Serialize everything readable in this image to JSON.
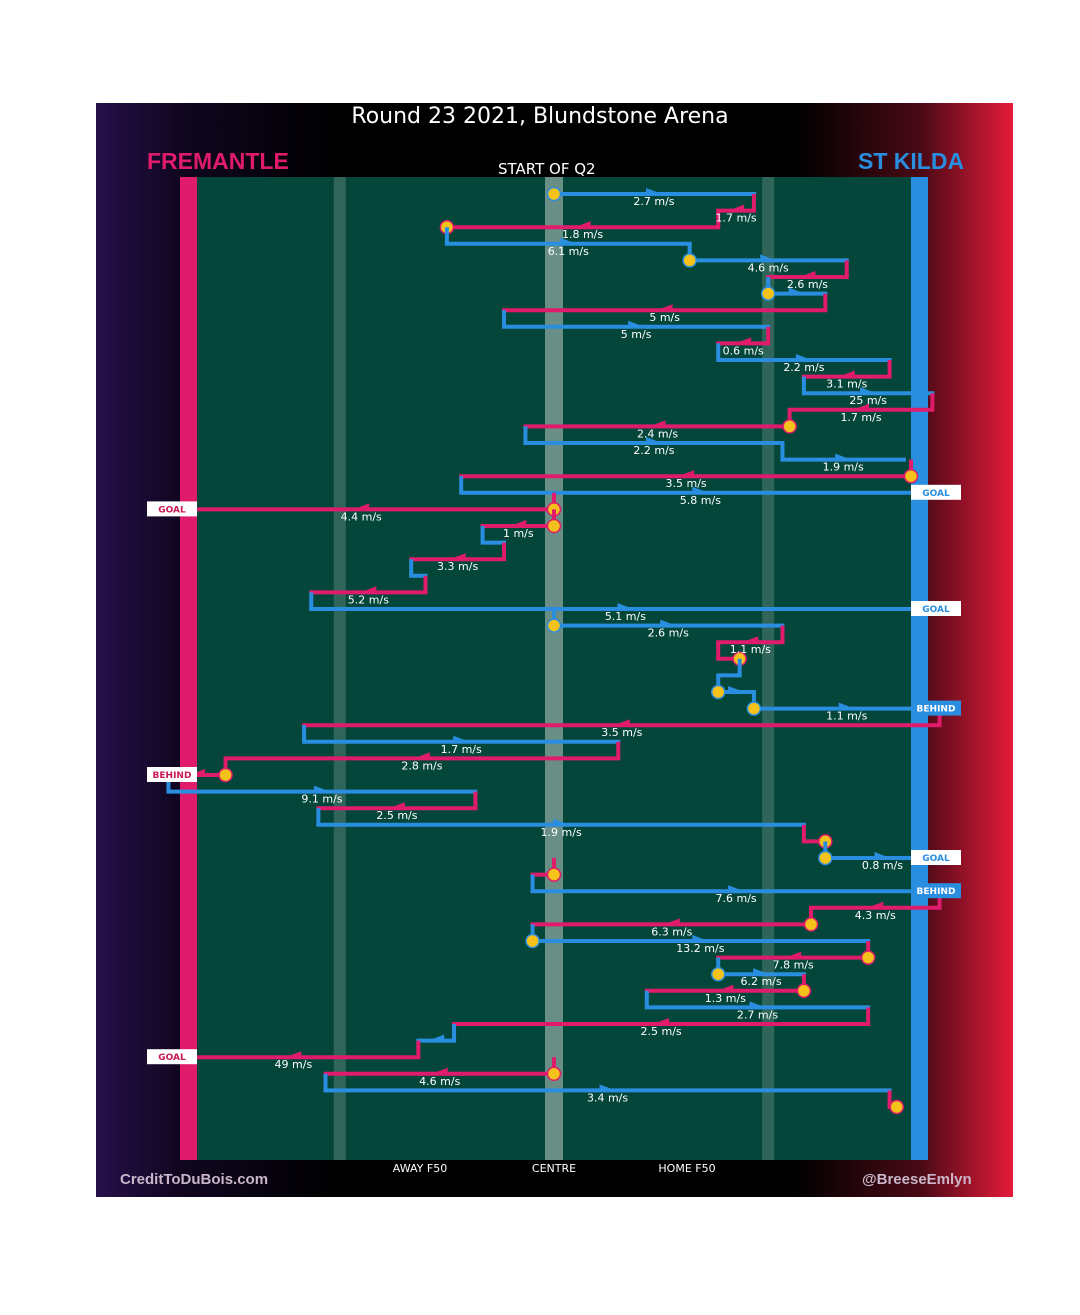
{
  "title": "Round 23 2021, Blundstone Arena",
  "period_label": "START OF Q2",
  "teams": {
    "left": {
      "name": "FREMANTLE",
      "color": "#e01b6c"
    },
    "right": {
      "name": "ST KILDA",
      "color": "#2a8ee0"
    }
  },
  "axis_labels": {
    "away_f50": "AWAY F50",
    "centre": "CENTRE",
    "home_f50": "HOME F50"
  },
  "credits": {
    "left": "CreditToDuBois.com",
    "right": "@BreeseEmlyn"
  },
  "colors": {
    "fremantle": "#e01b6c",
    "st_kilda": "#2a8ee0",
    "field": "#04473a",
    "marker": "#f4c21a",
    "goal_text": "#c8184f"
  },
  "chart_data": {
    "type": "possession-chain",
    "x_axis": {
      "min": 0,
      "max": 100,
      "ticks": [
        {
          "x": 20,
          "label": "AWAY F50"
        },
        {
          "x": 50,
          "label": "CENTRE"
        },
        {
          "x": 80,
          "label": "HOME F50"
        }
      ]
    },
    "chains": [
      {
        "team": "stk",
        "x0": 50,
        "x1": 78,
        "speed": "2.7 m/s",
        "start_marker": true
      },
      {
        "team": "fre",
        "x0": 78,
        "x1": 73,
        "speed": "1.7 m/s"
      },
      {
        "team": "fre",
        "x0": 73,
        "x1": 35,
        "speed": "1.8 m/s",
        "end_marker": true
      },
      {
        "team": "stk",
        "x0": 35,
        "x1": 69,
        "speed": "6.1 m/s"
      },
      {
        "team": "stk",
        "x0": 69,
        "x1": 91,
        "speed": "4.6 m/s",
        "start_marker": true
      },
      {
        "team": "fre",
        "x0": 91,
        "x1": 80,
        "speed": "2.6 m/s"
      },
      {
        "team": "stk",
        "x0": 80,
        "x1": 88,
        "speed": "",
        "start_marker": true
      },
      {
        "team": "fre",
        "x0": 88,
        "x1": 43,
        "speed": "5 m/s"
      },
      {
        "team": "stk",
        "x0": 43,
        "x1": 80,
        "speed": "5 m/s"
      },
      {
        "team": "fre",
        "x0": 80,
        "x1": 73,
        "speed": "0.6 m/s"
      },
      {
        "team": "stk",
        "x0": 73,
        "x1": 97,
        "speed": "2.2 m/s"
      },
      {
        "team": "fre",
        "x0": 97,
        "x1": 85,
        "speed": "3.1 m/s"
      },
      {
        "team": "stk",
        "x0": 85,
        "x1": 103,
        "speed": "25 m/s"
      },
      {
        "team": "fre",
        "x0": 103,
        "x1": 83,
        "speed": "1.7 m/s"
      },
      {
        "team": "fre",
        "x0": 83,
        "x1": 46,
        "speed": "2.4 m/s",
        "start_marker": true
      },
      {
        "team": "stk",
        "x0": 46,
        "x1": 82,
        "speed": "2.2 m/s"
      },
      {
        "team": "stk",
        "x0": 82,
        "x1": 99,
        "speed": "1.9 m/s"
      },
      {
        "team": "fre",
        "x0": 100,
        "x1": 37,
        "speed": "3.5 m/s",
        "start_marker": true
      },
      {
        "team": "stk",
        "x0": 37,
        "x1": 104,
        "speed": "5.8 m/s",
        "outcome": "GOAL"
      },
      {
        "team": "fre",
        "x0": 50,
        "x1": -4,
        "speed": "4.4 m/s",
        "start_marker": true,
        "outcome": "GOAL"
      },
      {
        "team": "fre",
        "x0": 50,
        "x1": 40,
        "speed": "1 m/s",
        "start_marker": true
      },
      {
        "team": "stk",
        "x0": 40,
        "x1": 43,
        "speed": ""
      },
      {
        "team": "fre",
        "x0": 43,
        "x1": 30,
        "speed": "3.3 m/s"
      },
      {
        "team": "stk",
        "x0": 30,
        "x1": 32,
        "speed": ""
      },
      {
        "team": "fre",
        "x0": 32,
        "x1": 16,
        "speed": "5.2 m/s"
      },
      {
        "team": "stk",
        "x0": 16,
        "x1": 104,
        "speed": "5.1 m/s",
        "outcome": "GOAL"
      },
      {
        "team": "stk",
        "x0": 50,
        "x1": 82,
        "speed": "2.6 m/s",
        "start_marker": true
      },
      {
        "team": "fre",
        "x0": 82,
        "x1": 73,
        "speed": "1.1 m/s"
      },
      {
        "team": "fre",
        "x0": 73,
        "x1": 76,
        "speed": "",
        "end_marker": true
      },
      {
        "team": "stk",
        "x0": 76,
        "x1": 73,
        "speed": ""
      },
      {
        "team": "stk",
        "x0": 73,
        "x1": 78,
        "speed": "",
        "start_marker": true
      },
      {
        "team": "stk",
        "x0": 78,
        "x1": 104,
        "speed": "1.1 m/s",
        "start_marker": true,
        "outcome": "BEHIND"
      },
      {
        "team": "fre",
        "x0": 104,
        "x1": 15,
        "speed": "3.5 m/s"
      },
      {
        "team": "stk",
        "x0": 15,
        "x1": 59,
        "speed": "1.7 m/s"
      },
      {
        "team": "fre",
        "x0": 59,
        "x1": 4,
        "speed": "2.8 m/s"
      },
      {
        "team": "fre",
        "x0": 4,
        "x1": -4,
        "speed": "",
        "start_marker": true,
        "outcome": "BEHIND"
      },
      {
        "team": "stk",
        "x0": -4,
        "x1": 39,
        "speed": "9.1 m/s"
      },
      {
        "team": "fre",
        "x0": 39,
        "x1": 17,
        "speed": "2.5 m/s"
      },
      {
        "team": "stk",
        "x0": 17,
        "x1": 85,
        "speed": "1.9 m/s"
      },
      {
        "team": "fre",
        "x0": 85,
        "x1": 88,
        "speed": "",
        "end_marker": true
      },
      {
        "team": "stk",
        "x0": 88,
        "x1": 104,
        "speed": "0.8 m/s",
        "start_marker": true,
        "outcome": "GOAL"
      },
      {
        "team": "fre",
        "x0": 50,
        "x1": 47,
        "speed": "",
        "start_marker": true
      },
      {
        "team": "stk",
        "x0": 47,
        "x1": 104,
        "speed": "7.6 m/s",
        "outcome": "BEHIND"
      },
      {
        "team": "fre",
        "x0": 104,
        "x1": 86,
        "speed": "4.3 m/s"
      },
      {
        "team": "fre",
        "x0": 86,
        "x1": 47,
        "speed": "6.3 m/s",
        "start_marker": true
      },
      {
        "team": "stk",
        "x0": 47,
        "x1": 94,
        "speed": "13.2 m/s",
        "start_marker": true
      },
      {
        "team": "fre",
        "x0": 94,
        "x1": 73,
        "speed": "7.8 m/s",
        "start_marker": true
      },
      {
        "team": "stk",
        "x0": 73,
        "x1": 85,
        "speed": "6.2 m/s",
        "start_marker": true
      },
      {
        "team": "fre",
        "x0": 85,
        "x1": 63,
        "speed": "1.3 m/s",
        "start_marker": true
      },
      {
        "team": "stk",
        "x0": 63,
        "x1": 94,
        "speed": "2.7 m/s"
      },
      {
        "team": "fre",
        "x0": 94,
        "x1": 36,
        "speed": "2.5 m/s"
      },
      {
        "team": "stk",
        "x0": 36,
        "x1": 31,
        "speed": ""
      },
      {
        "team": "fre",
        "x0": 31,
        "x1": -4,
        "speed": "49 m/s",
        "outcome": "GOAL"
      },
      {
        "team": "fre",
        "x0": 50,
        "x1": 18,
        "speed": "4.6 m/s",
        "start_marker": true
      },
      {
        "team": "stk",
        "x0": 18,
        "x1": 97,
        "speed": "3.4 m/s"
      },
      {
        "team": "fre",
        "x0": 97,
        "x1": 98,
        "speed": "",
        "end_marker": true
      }
    ]
  }
}
